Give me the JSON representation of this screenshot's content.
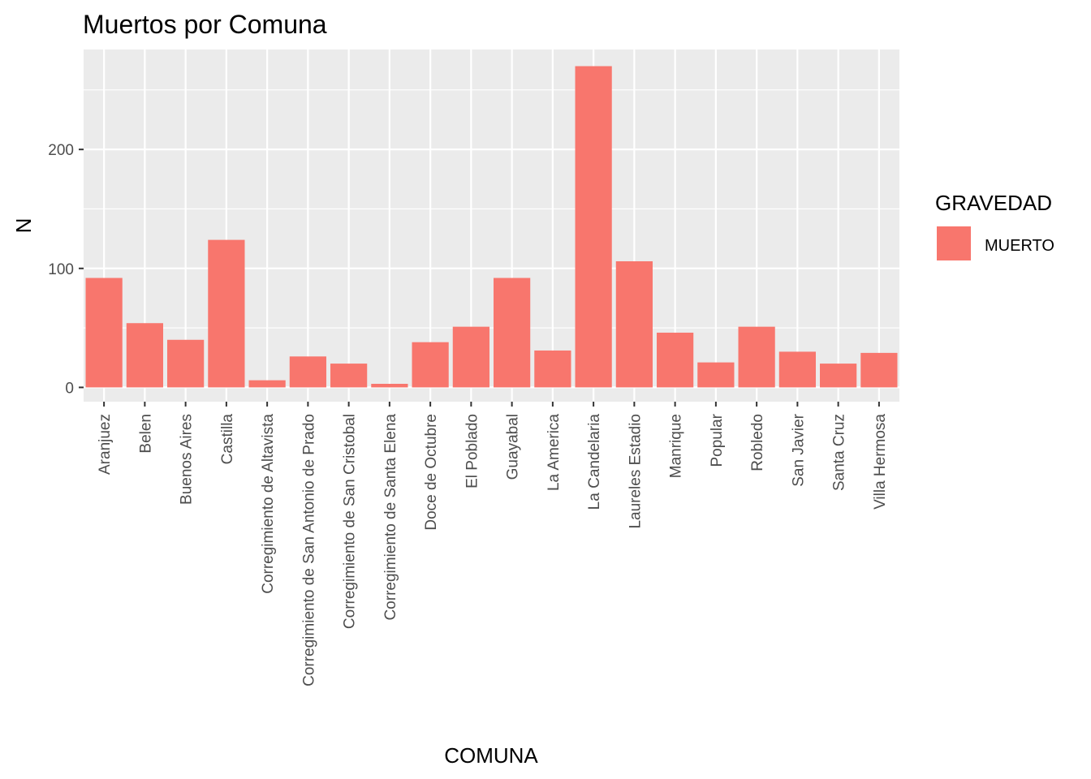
{
  "chart_data": {
    "type": "bar",
    "title": "Muertos por Comuna",
    "xlabel": "COMUNA",
    "ylabel": "N",
    "categories": [
      "Aranjuez",
      "Belen",
      "Buenos Aires",
      "Castilla",
      "Corregimiento de Altavista",
      "Corregimiento de San Antonio de Prado",
      "Corregimiento de San Cristobal",
      "Corregimiento de Santa Elena",
      "Doce de Octubre",
      "El Poblado",
      "Guayabal",
      "La America",
      "La Candelaria",
      "Laureles Estadio",
      "Manrique",
      "Popular",
      "Robledo",
      "San Javier",
      "Santa Cruz",
      "Villa Hermosa"
    ],
    "series": [
      {
        "name": "MUERTO",
        "color": "#f8766d",
        "values": [
          92,
          54,
          40,
          124,
          6,
          26,
          20,
          3,
          38,
          51,
          92,
          31,
          270,
          106,
          46,
          21,
          51,
          30,
          20,
          29
        ]
      }
    ],
    "yticks": [
      0,
      100,
      200
    ],
    "ylim": [
      -12,
      284
    ],
    "grid": true,
    "panel_color": "#ebebeb",
    "legend": {
      "title": "GRAVEDAD",
      "placement": "right"
    }
  }
}
